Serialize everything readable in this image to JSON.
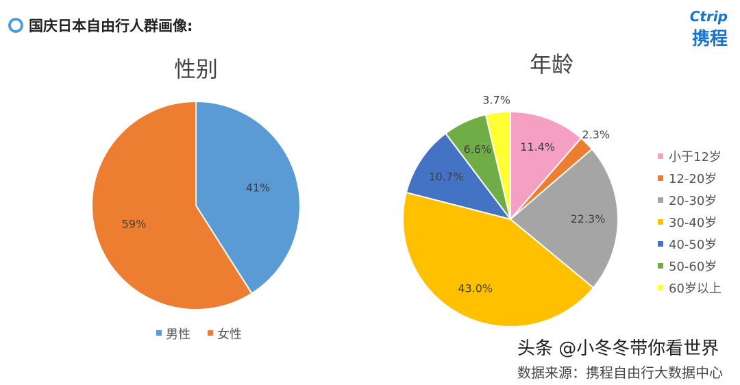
{
  "header": {
    "title": "国庆日本自由行人群画像:"
  },
  "logo": {
    "en": "Ctrip",
    "cn": "携程"
  },
  "chart_data": [
    {
      "type": "pie",
      "title": "性别",
      "labels": [
        "男性",
        "女性"
      ],
      "values": [
        41,
        59
      ],
      "value_labels": [
        "41%",
        "59%"
      ],
      "colors": [
        "#5b9bd5",
        "#ed7d31"
      ],
      "legend": "bottom"
    },
    {
      "type": "pie",
      "title": "年龄",
      "labels": [
        "小于12岁",
        "12-20岁",
        "20-30岁",
        "30-40岁",
        "40-50岁",
        "50-60岁",
        "60岁以上"
      ],
      "values": [
        11.4,
        2.3,
        22.3,
        43.0,
        10.7,
        6.6,
        3.7
      ],
      "value_labels": [
        "11.4%",
        "2.3%",
        "22.3%",
        "43.0%",
        "10.7%",
        "6.6%",
        "3.7%"
      ],
      "colors": [
        "#f59fc3",
        "#ed7d31",
        "#a5a5a5",
        "#ffc000",
        "#4472c4",
        "#70ad47",
        "#ffff33"
      ],
      "legend": "right"
    }
  ],
  "footer": {
    "source": "数据来源：携程自由行大数据中心",
    "watermark": "头条 @小冬冬带你看世界"
  }
}
